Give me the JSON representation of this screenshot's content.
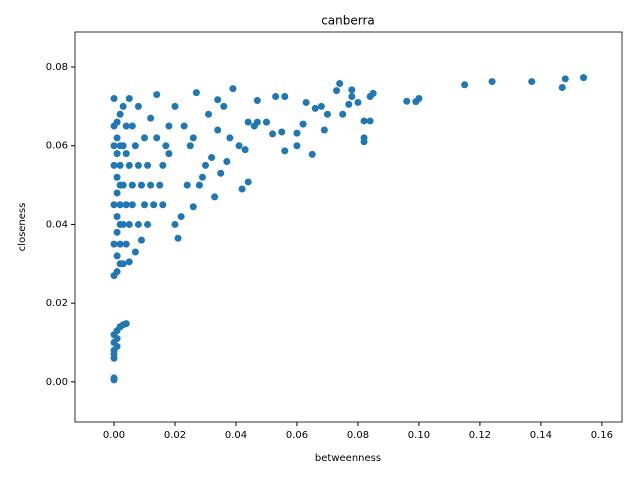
{
  "chart_data": {
    "type": "scatter",
    "title": "canberra",
    "x_label": "betweenness",
    "y_label": "closeness",
    "color": "#1f77b4",
    "xlim": [
      -0.0128,
      0.1666
    ],
    "ylim": [
      -0.0102,
      0.0889
    ],
    "xticks": [
      {
        "value": 0,
        "label": "0.00"
      },
      {
        "value": 0.02,
        "label": "0.02"
      },
      {
        "value": 0.04,
        "label": "0.04"
      },
      {
        "value": 0.06,
        "label": "0.06"
      },
      {
        "value": 0.08,
        "label": "0.08"
      },
      {
        "value": 0.1,
        "label": "0.10"
      },
      {
        "value": 0.12,
        "label": "0.12"
      },
      {
        "value": 0.14,
        "label": "0.14"
      },
      {
        "value": 0.16,
        "label": "0.16"
      }
    ],
    "yticks": [
      {
        "value": 0,
        "label": "0.00"
      },
      {
        "value": 0.02,
        "label": "0.02"
      },
      {
        "value": 0.04,
        "label": "0.04"
      },
      {
        "value": 0.06,
        "label": "0.06"
      },
      {
        "value": 0.08,
        "label": "0.08"
      }
    ],
    "x": [
      0.154,
      0.148,
      0.147,
      0.137,
      0.124,
      0.115,
      0.1,
      0.099,
      0.096,
      0.085,
      0.084,
      0.084,
      0.082,
      0.082,
      0.082,
      0.08,
      0.078,
      0.078,
      0.077,
      0.075,
      0.074,
      0.073,
      0.07,
      0.069,
      0.068,
      0.066,
      0.065,
      0.063,
      0.062,
      0.06,
      0.06,
      0.056,
      0.056,
      0.055,
      0.053,
      0.052,
      0.05,
      0.047,
      0.046,
      0.044,
      0.043,
      0.042,
      0.041,
      0.044,
      0.039,
      0.038,
      0.037,
      0.036,
      0.035,
      0.034,
      0.033,
      0.032,
      0.03,
      0.029,
      0.028,
      0.027,
      0.026,
      0.025,
      0.024,
      0.022,
      0.021,
      0.02,
      0.02,
      0.018,
      0.017,
      0.016,
      0.015,
      0.014,
      0.013,
      0.012,
      0.011,
      0.01,
      0.009,
      0.008,
      0.008,
      0.007,
      0.006,
      0.005,
      0.005,
      0.004,
      0.003,
      0.003,
      0.002,
      0.002,
      0.001,
      0.001,
      0,
      0,
      0,
      0,
      0,
      0,
      0,
      0.001,
      0.001,
      0.001,
      0.001,
      0.001,
      0.001,
      0.001,
      0.002,
      0.002,
      0.002,
      0.002,
      0.002,
      0.002,
      0.003,
      0.003,
      0.003,
      0.004,
      0.004,
      0.004,
      0.005,
      0.005,
      0.006,
      0.006,
      0.007,
      0.008,
      0.009,
      0.01,
      0.011,
      0.012,
      0.014,
      0.016,
      0.018,
      0.023,
      0.026,
      0.031,
      0.034,
      0.047,
      0,
      0,
      0,
      0,
      0,
      0,
      0.001,
      0.001,
      0.002,
      0.003,
      0.004,
      0,
      0.001
    ],
    "y": [
      0.0773,
      0.077,
      0.0748,
      0.0763,
      0.0763,
      0.0755,
      0.072,
      0.0712,
      0.0713,
      0.0733,
      0.0725,
      0.0663,
      0.0663,
      0.062,
      0.061,
      0.071,
      0.0742,
      0.0725,
      0.0705,
      0.068,
      0.0758,
      0.074,
      0.068,
      0.064,
      0.07,
      0.0695,
      0.0578,
      0.071,
      0.0655,
      0.06,
      0.0632,
      0.0587,
      0.0725,
      0.0635,
      0.0725,
      0.063,
      0.066,
      0.0715,
      0.065,
      0.066,
      0.059,
      0.049,
      0.06,
      0.0508,
      0.0745,
      0.062,
      0.056,
      0.07,
      0.053,
      0.0717,
      0.047,
      0.057,
      0.055,
      0.052,
      0.05,
      0.0735,
      0.0445,
      0.06,
      0.05,
      0.042,
      0.0365,
      0.04,
      0.07,
      0.065,
      0.06,
      0.055,
      0.05,
      0.073,
      0.045,
      0.067,
      0.04,
      0.062,
      0.036,
      0.07,
      0.055,
      0.033,
      0.065,
      0.0305,
      0.072,
      0.058,
      0.03,
      0.07,
      0.05,
      0.04,
      0.028,
      0.066,
      0.072,
      0.027,
      0.035,
      0.045,
      0.055,
      0.06,
      0.065,
      0.032,
      0.038,
      0.042,
      0.048,
      0.052,
      0.058,
      0.062,
      0.03,
      0.035,
      0.045,
      0.055,
      0.06,
      0.068,
      0.04,
      0.05,
      0.06,
      0.035,
      0.045,
      0.065,
      0.04,
      0.055,
      0.045,
      0.05,
      0.06,
      0.04,
      0.05,
      0.045,
      0.055,
      0.05,
      0.062,
      0.045,
      0.058,
      0.065,
      0.062,
      0.068,
      0.064,
      0.066,
      0.0005,
      0.001,
      0.006,
      0.008,
      0.01,
      0.012,
      0.013,
      0.009,
      0.014,
      0.0145,
      0.0148,
      0.007,
      0.011
    ]
  }
}
